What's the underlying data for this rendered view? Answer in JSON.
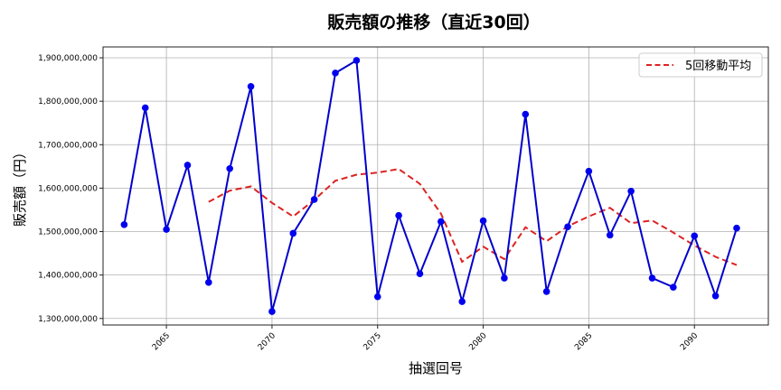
{
  "chart_data": {
    "type": "line",
    "title": "販売額の推移（直近30回）",
    "xlabel": "抽選回号",
    "ylabel": "販売額（円）",
    "x": [
      2063,
      2064,
      2065,
      2066,
      2067,
      2068,
      2069,
      2070,
      2071,
      2072,
      2073,
      2074,
      2075,
      2076,
      2077,
      2078,
      2079,
      2080,
      2081,
      2082,
      2083,
      2084,
      2085,
      2086,
      2087,
      2088,
      2089,
      2090,
      2091,
      2092
    ],
    "series": [
      {
        "name": "販売額",
        "color": "#0000cc",
        "style": "solid-marker",
        "values": [
          1516000000,
          1785000000,
          1505000000,
          1653000000,
          1383000000,
          1645000000,
          1834000000,
          1316000000,
          1496000000,
          1574000000,
          1865000000,
          1894000000,
          1350000000,
          1537000000,
          1403000000,
          1523000000,
          1339000000,
          1525000000,
          1393000000,
          1770000000,
          1362000000,
          1511000000,
          1639000000,
          1492000000,
          1593000000,
          1393000000,
          1372000000,
          1490000000,
          1352000000,
          1508000000
        ]
      },
      {
        "name": "5回移動平均",
        "color": "#dd2222",
        "style": "dashed",
        "values": [
          null,
          null,
          null,
          null,
          1568400000,
          1594200000,
          1604000000,
          1566200000,
          1534800000,
          1573000000,
          1617000000,
          1631000000,
          1635800000,
          1644000000,
          1609800000,
          1541400000,
          1430400000,
          1465400000,
          1436600000,
          1510000000,
          1477800000,
          1512200000,
          1535000000,
          1554800000,
          1519400000,
          1525600000,
          1497800000,
          1468000000,
          1441800000,
          1423000000
        ]
      }
    ],
    "xticks": [
      2065,
      2070,
      2075,
      2080,
      2085,
      2090
    ],
    "yticks": [
      "1,300,000,000",
      "1,400,000,000",
      "1,500,000,000",
      "1,600,000,000",
      "1,700,000,000",
      "1,800,000,000",
      "1,900,000,000"
    ],
    "ylim": [
      1285000000,
      1925000000
    ],
    "xlim": [
      2062,
      2093.5
    ],
    "grid": true,
    "legend_position": "upper right"
  },
  "legend": {
    "label": "5回移動平均"
  }
}
